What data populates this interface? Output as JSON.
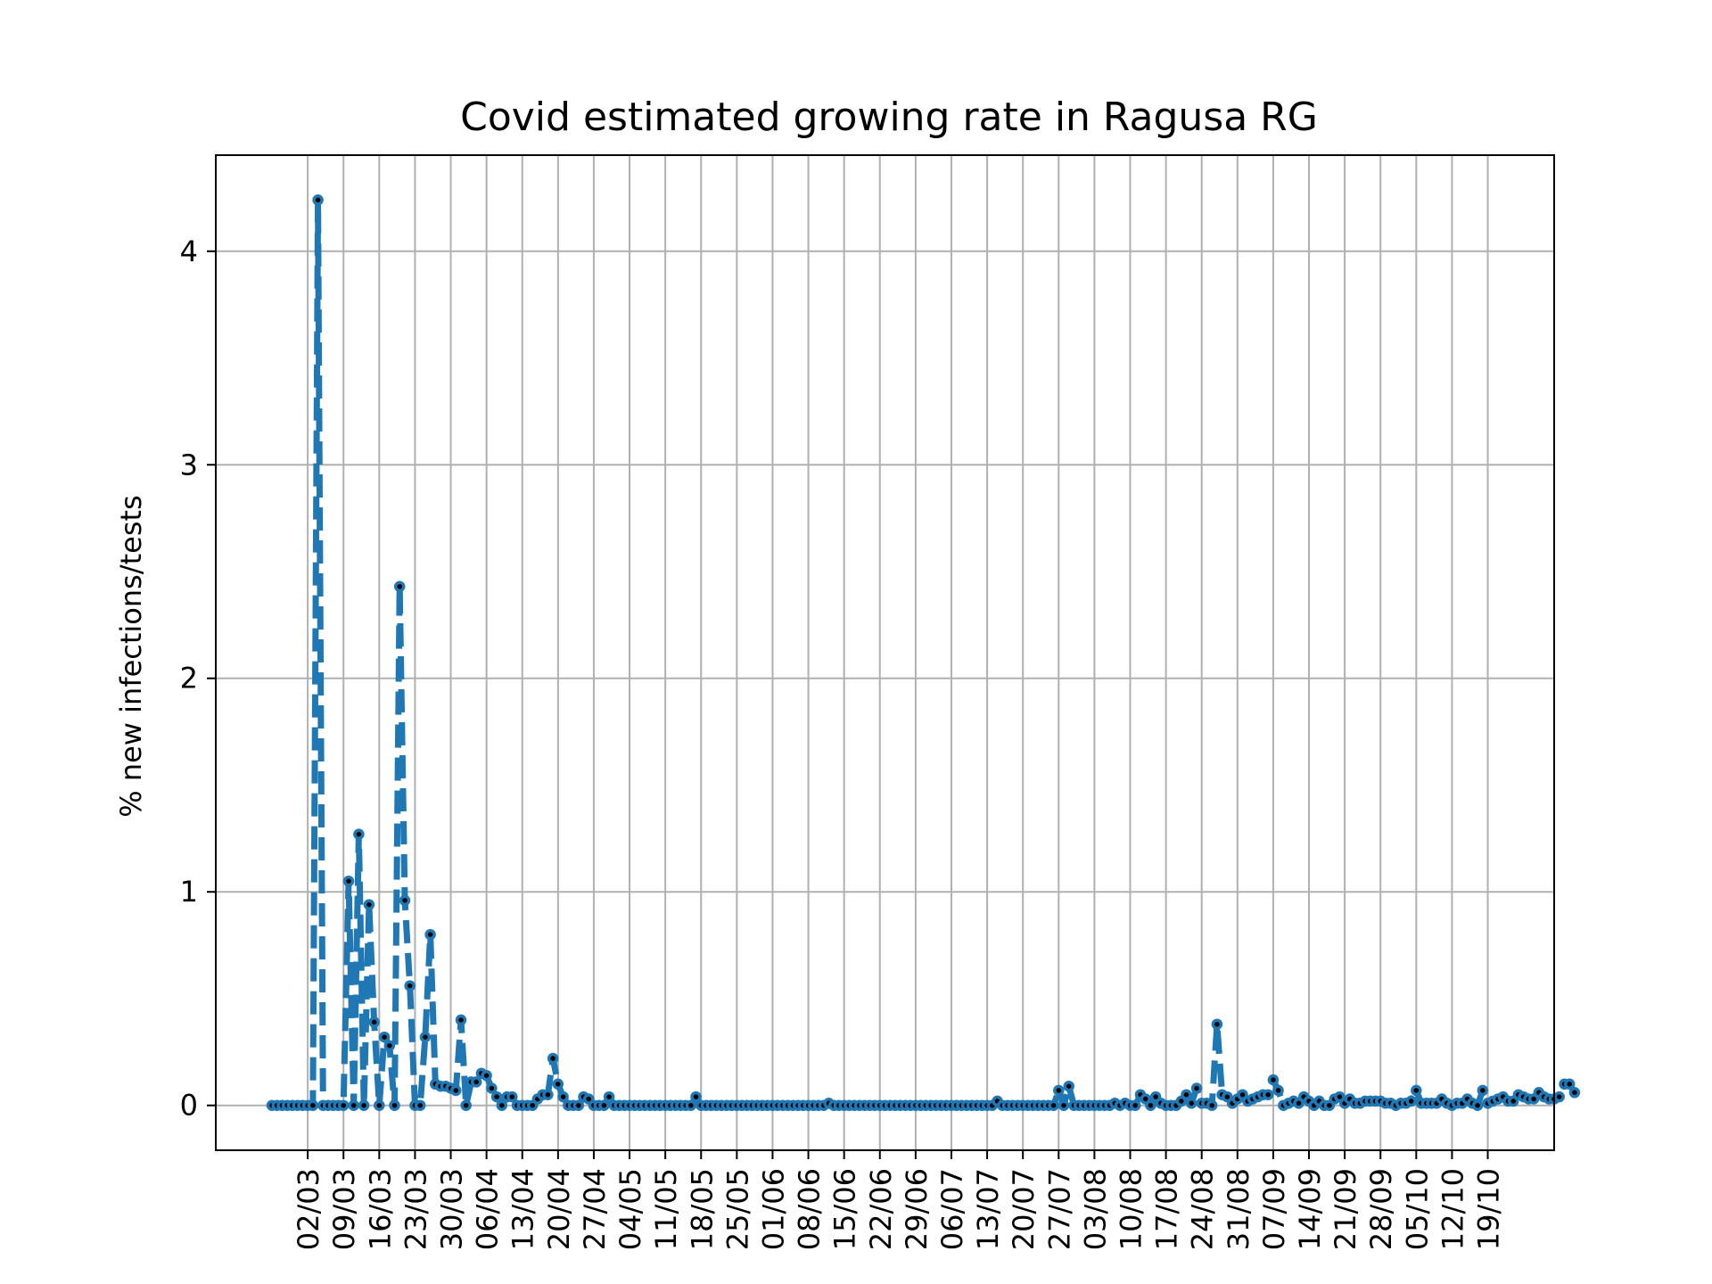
{
  "chart_data": {
    "type": "line",
    "title": "Covid estimated growing rate in Ragusa RG",
    "ylabel": "% new infections/tests",
    "xlabel": "",
    "x_type": "date",
    "date_start": "2020-02-24",
    "date_end": "2020-10-21",
    "xlim": [
      "2020-02-13",
      "2020-11-01"
    ],
    "ylim": [
      -0.21,
      4.45
    ],
    "yticks": [
      0,
      1,
      2,
      3,
      4
    ],
    "xticks": [
      "2020-03-02",
      "2020-03-09",
      "2020-03-16",
      "2020-03-23",
      "2020-03-30",
      "2020-04-06",
      "2020-04-13",
      "2020-04-20",
      "2020-04-27",
      "2020-05-04",
      "2020-05-11",
      "2020-05-18",
      "2020-05-25",
      "2020-06-01",
      "2020-06-08",
      "2020-06-15",
      "2020-06-22",
      "2020-06-29",
      "2020-07-06",
      "2020-07-13",
      "2020-07-20",
      "2020-07-27",
      "2020-08-03",
      "2020-08-10",
      "2020-08-17",
      "2020-08-24",
      "2020-08-31",
      "2020-09-07",
      "2020-09-14",
      "2020-09-21",
      "2020-09-28",
      "2020-10-05",
      "2020-10-12",
      "2020-10-19"
    ],
    "xtick_labels": [
      "02/03",
      "09/03",
      "16/03",
      "23/03",
      "30/03",
      "06/04",
      "13/04",
      "20/04",
      "27/04",
      "04/05",
      "11/05",
      "18/05",
      "25/05",
      "01/06",
      "08/06",
      "15/06",
      "22/06",
      "29/06",
      "06/07",
      "13/07",
      "20/07",
      "27/07",
      "03/08",
      "10/08",
      "17/08",
      "24/08",
      "31/08",
      "07/09",
      "14/09",
      "21/09",
      "28/09",
      "05/10",
      "12/10",
      "19/10"
    ],
    "grid": true,
    "legend": "none",
    "colors": {
      "line": "#1f77b4",
      "marker_face": "#000000",
      "marker_edge": "#1f77b4",
      "grid": "#b0b0b0"
    },
    "series": [
      {
        "values": [
          0,
          0,
          0,
          0,
          0,
          0,
          0,
          0,
          0,
          4.24,
          0,
          0,
          0,
          0,
          0,
          1.05,
          0,
          1.27,
          0,
          0.94,
          0.39,
          0,
          0.32,
          0.28,
          0,
          2.43,
          0.96,
          0.56,
          0,
          0,
          0.32,
          0.8,
          0.1,
          0.09,
          0.09,
          0.08,
          0.07,
          0.4,
          0,
          0.11,
          0.11,
          0.15,
          0.14,
          0.08,
          0.04,
          0,
          0.04,
          0.04,
          0,
          0,
          0,
          0,
          0.03,
          0.05,
          0.05,
          0.22,
          0.1,
          0.04,
          0,
          0,
          0,
          0.04,
          0.03,
          0,
          0,
          0,
          0.04,
          0,
          0,
          0,
          0,
          0,
          0,
          0,
          0,
          0,
          0,
          0,
          0,
          0,
          0,
          0,
          0,
          0.04,
          0,
          0,
          0,
          0,
          0,
          0,
          0,
          0,
          0,
          0,
          0,
          0,
          0,
          0,
          0,
          0,
          0,
          0,
          0,
          0,
          0,
          0,
          0,
          0,
          0,
          0.01,
          0,
          0,
          0,
          0,
          0,
          0,
          0,
          0,
          0,
          0,
          0,
          0,
          0,
          0,
          0,
          0,
          0,
          0,
          0,
          0,
          0,
          0,
          0,
          0,
          0,
          0,
          0,
          0,
          0,
          0,
          0,
          0,
          0.02,
          0,
          0,
          0,
          0,
          0,
          0,
          0,
          0,
          0,
          0,
          0,
          0.07,
          0,
          0.09,
          0,
          0,
          0,
          0,
          0,
          0,
          0,
          0,
          0.01,
          0,
          0.01,
          0,
          0,
          0.05,
          0.03,
          0,
          0.04,
          0.01,
          0,
          0,
          0,
          0.02,
          0.05,
          0.01,
          0.08,
          0.01,
          0.01,
          0,
          0.38,
          0.05,
          0.04,
          0.01,
          0.03,
          0.05,
          0.02,
          0.03,
          0.04,
          0.05,
          0.05,
          0.12,
          0.07,
          0,
          0.01,
          0.02,
          0.01,
          0.04,
          0.02,
          0,
          0.02,
          0,
          0,
          0.03,
          0.04,
          0.01,
          0.03,
          0.01,
          0.01,
          0.02,
          0.02,
          0.02,
          0.02,
          0.01,
          0.01,
          0,
          0.01,
          0.01,
          0.02,
          0.07,
          0.01,
          0.01,
          0.01,
          0.01,
          0.03,
          0.01,
          0,
          0.01,
          0.01,
          0.03,
          0.01,
          0,
          0.07,
          0.01,
          0.02,
          0.03,
          0.04,
          0.02,
          0.02,
          0.05,
          0.04,
          0.03,
          0.03,
          0.06,
          0.04,
          0.03,
          0.03,
          0.04,
          0.1,
          0.1,
          0.06
        ]
      }
    ]
  }
}
